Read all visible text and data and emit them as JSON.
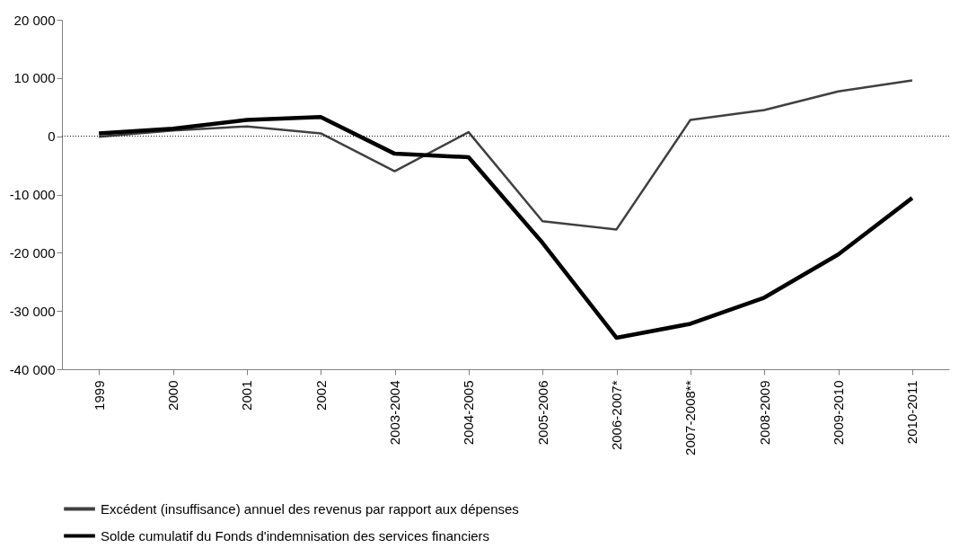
{
  "chart_data": {
    "type": "line",
    "categories": [
      "1999",
      "2000",
      "2001",
      "2002",
      "2003-2004",
      "2004-2005",
      "2005-2006",
      "2006-2007*",
      "2007-2008**",
      "2008-2009",
      "2009-2010",
      "2010-2011"
    ],
    "series": [
      {
        "name": "Excédent (insuffisance) annuel des revenus par rapport aux dépenses",
        "color": "#404040",
        "values": [
          -100,
          1000,
          1700,
          500,
          -6000,
          700,
          -14600,
          -16000,
          2800,
          4500,
          7700,
          9600
        ]
      },
      {
        "name": "Solde cumulatif du Fonds d'indemnisation des services financiers",
        "color": "#000000",
        "values": [
          500,
          1300,
          2800,
          3300,
          -3000,
          -3600,
          -18300,
          -34600,
          -32200,
          -27700,
          -20300,
          -10600
        ]
      }
    ],
    "ylim": [
      -40000,
      20000
    ],
    "yticks": [
      {
        "value": -40000,
        "label": "-40 000"
      },
      {
        "value": -30000,
        "label": "-30 000"
      },
      {
        "value": -20000,
        "label": "-20 000"
      },
      {
        "value": -10000,
        "label": "-10 000"
      },
      0,
      {
        "value": 10000,
        "label": "10 000"
      },
      {
        "value": 20000,
        "label": "20 000"
      }
    ],
    "ref_lines": [
      {
        "axis": "y",
        "value": 0,
        "color": "#000000",
        "line_style": "dotted"
      }
    ],
    "grid": false,
    "legend": "bottom",
    "marker": "none",
    "line_style": "solid"
  }
}
